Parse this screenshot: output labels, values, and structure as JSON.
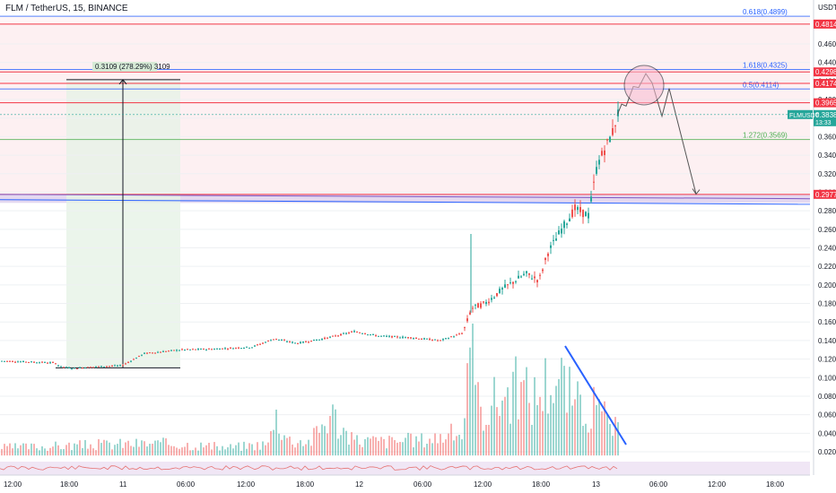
{
  "header": {
    "title": "FLM / TetherUS, 15, BINANCE",
    "currency": "USDT"
  },
  "colors": {
    "up": "#26a69a",
    "down": "#ef5350",
    "fib_blue": "#2962ff",
    "fib_red": "#f23645",
    "zone_pink": "#fce4e8",
    "zone_green": "#e6f2e6",
    "symbol_tag": "#26a69a"
  },
  "chart_data": {
    "type": "candlestick",
    "symbol": "FLMUSDT",
    "interval": "15",
    "exchange": "BINANCE",
    "ylim": [
      0.015,
      0.53
    ],
    "y_ticks": [
      "0.4600",
      "0.4400",
      "0.4200",
      "0.4000",
      "0.3800",
      "0.3600",
      "0.3400",
      "0.3200",
      "0.3000",
      "0.2800",
      "0.2600",
      "0.2400",
      "0.2200",
      "0.2000",
      "0.1800",
      "0.1600",
      "0.1400",
      "0.1200",
      "0.1000",
      "0.0800",
      "0.0600",
      "0.0400",
      "0.0200"
    ],
    "x_ticks": [
      "12:00",
      "18:00",
      "11",
      "06:00",
      "12:00",
      "18:00",
      "12",
      "06:00",
      "12:00",
      "18:00",
      "13",
      "06:00",
      "12:00",
      "18:00"
    ],
    "price_points": [
      [
        0,
        0.118
      ],
      [
        30,
        0.117
      ],
      [
        60,
        0.116
      ],
      [
        66,
        0.112
      ],
      [
        80,
        0.11
      ],
      [
        110,
        0.112
      ],
      [
        135,
        0.113
      ],
      [
        160,
        0.126
      ],
      [
        200,
        0.13
      ],
      [
        240,
        0.131
      ],
      [
        280,
        0.133
      ],
      [
        305,
        0.142
      ],
      [
        330,
        0.137
      ],
      [
        360,
        0.142
      ],
      [
        395,
        0.15
      ],
      [
        420,
        0.145
      ],
      [
        460,
        0.143
      ],
      [
        490,
        0.14
      ],
      [
        515,
        0.148
      ],
      [
        525,
        0.175
      ],
      [
        540,
        0.18
      ],
      [
        560,
        0.196
      ],
      [
        585,
        0.212
      ],
      [
        600,
        0.205
      ],
      [
        610,
        0.235
      ],
      [
        625,
        0.26
      ],
      [
        640,
        0.282
      ],
      [
        655,
        0.275
      ],
      [
        665,
        0.33
      ],
      [
        675,
        0.35
      ],
      [
        682,
        0.365
      ],
      [
        688,
        0.385
      ]
    ],
    "volume_points": [
      [
        0,
        0.01
      ],
      [
        60,
        0.012
      ],
      [
        140,
        0.015
      ],
      [
        200,
        0.015
      ],
      [
        250,
        0.01
      ],
      [
        300,
        0.015
      ],
      [
        304,
        0.06
      ],
      [
        320,
        0.02
      ],
      [
        345,
        0.018
      ],
      [
        368,
        0.055
      ],
      [
        390,
        0.02
      ],
      [
        430,
        0.018
      ],
      [
        470,
        0.02
      ],
      [
        515,
        0.03
      ],
      [
        524,
        0.13
      ],
      [
        530,
        0.07
      ],
      [
        540,
        0.06
      ],
      [
        555,
        0.075
      ],
      [
        575,
        0.085
      ],
      [
        595,
        0.075
      ],
      [
        612,
        0.1
      ],
      [
        626,
        0.095
      ],
      [
        640,
        0.065
      ],
      [
        660,
        0.06
      ],
      [
        676,
        0.045
      ],
      [
        688,
        0.03
      ]
    ],
    "projection_path": [
      [
        688,
        0.383
      ],
      [
        693,
        0.395
      ],
      [
        698,
        0.393
      ],
      [
        706,
        0.414
      ],
      [
        712,
        0.413
      ],
      [
        720,
        0.428
      ],
      [
        727,
        0.418
      ],
      [
        738,
        0.382
      ],
      [
        746,
        0.412
      ],
      [
        776,
        0.298
      ]
    ],
    "fib_levels": [
      {
        "label": "0.618(0.4899)",
        "value": 0.4899,
        "color": "blue"
      },
      {
        "label": "1.618(0.4325)",
        "value": 0.4325,
        "color": "blue"
      },
      {
        "label": "0.5(0.4114)",
        "value": 0.4114,
        "color": "blue"
      },
      {
        "label": "1.272(0.3569)",
        "value": 0.3569,
        "color": "green"
      }
    ],
    "horizontal_levels": [
      0.4814,
      0.4298,
      0.4174,
      0.3965,
      0.2977
    ],
    "price_tags": [
      {
        "label": "0.4814",
        "value": 0.4814
      },
      {
        "label": "0.4298",
        "value": 0.4298
      },
      {
        "label": "0.4174",
        "value": 0.4174
      },
      {
        "label": "0.3965",
        "value": 0.3965
      },
      {
        "label": "0.2977",
        "value": 0.2977
      }
    ],
    "current_price": {
      "symbol": "FLMUSDT",
      "price": "0.3838",
      "countdown": "13:33",
      "value": 0.3838
    },
    "measure_label": "0.3109 (278.29%) 3109",
    "zones": [
      {
        "from": 0.4814,
        "to": 0.2977,
        "color": "pink"
      },
      {
        "from": 0.2977,
        "to": 0.2885,
        "color": "purple"
      }
    ]
  }
}
